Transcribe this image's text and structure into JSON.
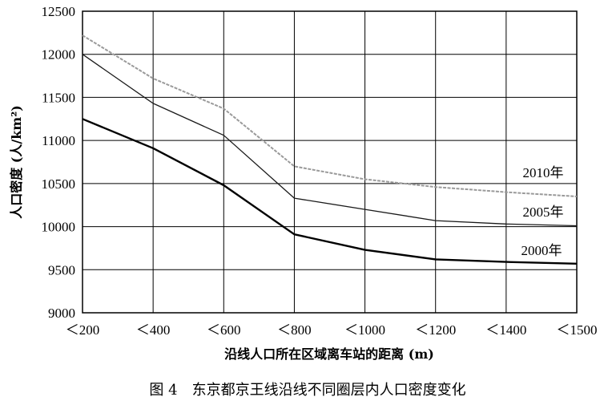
{
  "chart_data": {
    "type": "line",
    "categories": [
      "<200",
      "<400",
      "<600",
      "<800",
      "<1000",
      "<1200",
      "<1400",
      "<1500"
    ],
    "x_tick_labels": [
      "＜200",
      "＜400",
      "＜600",
      "＜800",
      "＜1000",
      "＜1200",
      "＜1400",
      "＜1500"
    ],
    "xlabel": "沿线人口所在区域离车站的距离 (m)",
    "ylabel": "人口密度 (人/km²)",
    "ylim": [
      9000,
      12500
    ],
    "y_ticks": [
      9000,
      9500,
      10000,
      10500,
      11000,
      11500,
      12000,
      12500
    ],
    "grid": true,
    "series": [
      {
        "name": "2010年",
        "color": "#9a9a9a",
        "values": [
          12220,
          11720,
          11370,
          10700,
          10550,
          10460,
          10400,
          10350
        ]
      },
      {
        "name": "2005年",
        "color": "#1a1a1a",
        "values": [
          12000,
          11430,
          11060,
          10330,
          10200,
          10070,
          10030,
          10010
        ]
      },
      {
        "name": "2000年",
        "color": "#000000",
        "values": [
          11250,
          10910,
          10480,
          9910,
          9730,
          9620,
          9590,
          9570
        ]
      }
    ],
    "caption": "图 4　东京都京王线沿线不同圈层内人口密度变化"
  }
}
